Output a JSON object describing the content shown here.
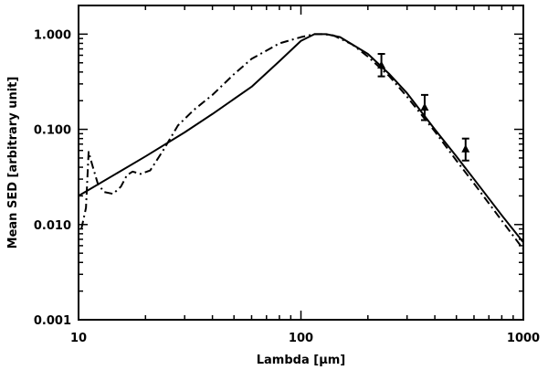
{
  "chart_data": {
    "type": "line",
    "xlabel": "Lambda [μm]",
    "ylabel": "Mean SED [arbitrary unit]",
    "xscale": "log",
    "yscale": "log",
    "xlim": [
      10,
      1000
    ],
    "ylim": [
      0.001,
      2.0
    ],
    "grid": false,
    "x_ticks": [
      {
        "value": 10,
        "label": "10"
      },
      {
        "value": 100,
        "label": "100"
      },
      {
        "value": 1000,
        "label": "1000"
      }
    ],
    "y_ticks": [
      {
        "value": 0.001,
        "label": "0.001"
      },
      {
        "value": 0.01,
        "label": "0.010"
      },
      {
        "value": 0.1,
        "label": "0.100"
      },
      {
        "value": 1.0,
        "label": "1.000"
      }
    ],
    "series": [
      {
        "style": "solid",
        "x": [
          10,
          15,
          20,
          30,
          40,
          60,
          80,
          100,
          115,
          130,
          150,
          200,
          250,
          300,
          400,
          500,
          600,
          800,
          1000
        ],
        "y": [
          0.02,
          0.035,
          0.052,
          0.093,
          0.145,
          0.28,
          0.52,
          0.85,
          1.0,
          1.0,
          0.93,
          0.62,
          0.38,
          0.24,
          0.1,
          0.052,
          0.03,
          0.0125,
          0.0065
        ]
      },
      {
        "style": "dashdot",
        "x": [
          10.3,
          10.8,
          11.1,
          11.5,
          12.2,
          13,
          14.3,
          15.5,
          16.5,
          17.5,
          19,
          21,
          24,
          28,
          33,
          40,
          50,
          60,
          80,
          100,
          115,
          125,
          140,
          170,
          200,
          250,
          300,
          400,
          500,
          600,
          800,
          1000
        ],
        "y": [
          0.009,
          0.015,
          0.058,
          0.043,
          0.027,
          0.022,
          0.021,
          0.025,
          0.033,
          0.036,
          0.034,
          0.037,
          0.06,
          0.11,
          0.16,
          0.23,
          0.38,
          0.55,
          0.8,
          0.93,
          1.0,
          1.0,
          0.97,
          0.78,
          0.58,
          0.36,
          0.22,
          0.095,
          0.047,
          0.027,
          0.011,
          0.0055
        ]
      }
    ],
    "points": [
      {
        "x": 230,
        "y": 0.47,
        "err_low": 0.36,
        "err_high": 0.62
      },
      {
        "x": 360,
        "y": 0.17,
        "err_low": 0.125,
        "err_high": 0.23
      },
      {
        "x": 550,
        "y": 0.062,
        "err_low": 0.047,
        "err_high": 0.08
      }
    ]
  }
}
